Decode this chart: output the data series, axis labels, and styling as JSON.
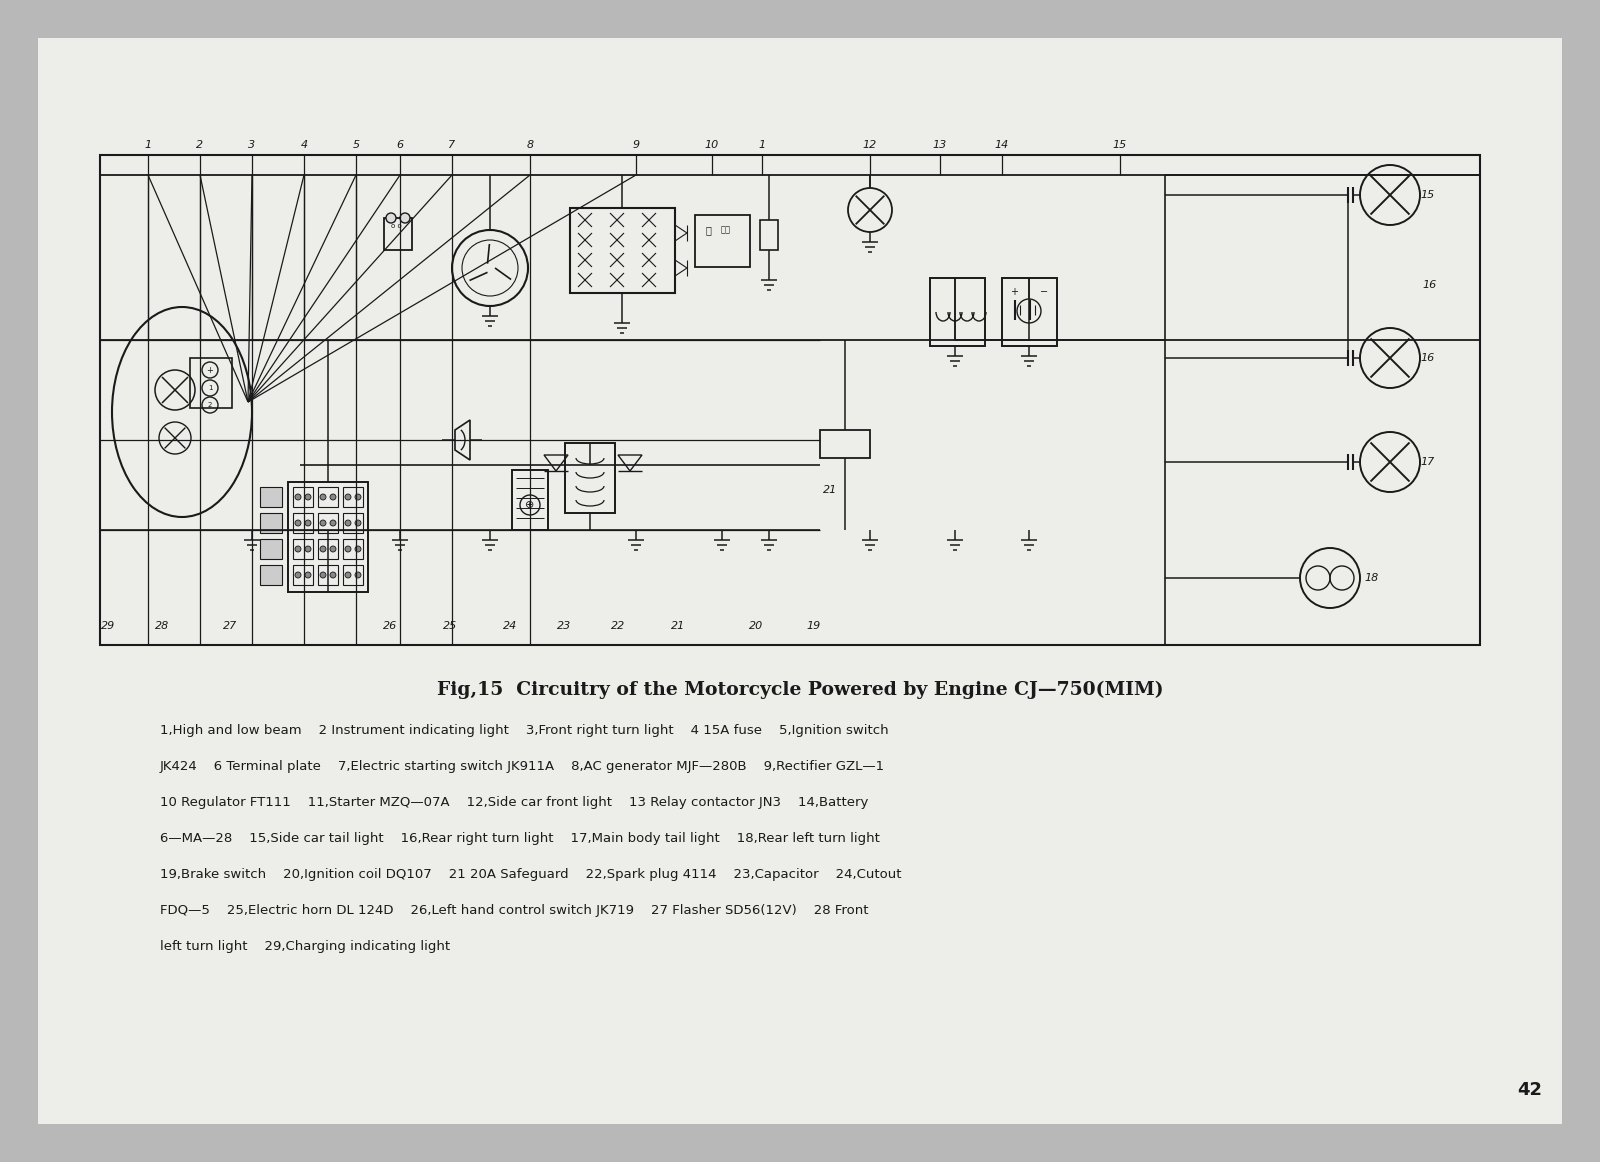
{
  "bg_color": "#b8b8b8",
  "page_bg": "#e8e6e0",
  "line_color": "#1a1a1a",
  "title": "Fig,15  Circuitry of the Motorcycle Powered by Engine CJ—750(MIM)",
  "legend_lines": [
    "1,High and low beam    2 Instrument indicating light    3,Front right turn light    4 15A fuse    5,Ignition switch",
    "JK424    6 Terminal plate    7,Electric starting switch JK911A    8,AC generator MJF—280B    9,Rectifier GZL—1",
    "10 Regulator FT111    11,Starter MZQ—07A    12,Side car front light    13 Relay contactor JN3    14,Battery",
    "6—MA—28    15,Side car tail light    16,Rear right turn light    17,Main body tail light    18,Rear left turn light",
    "19,Brake switch    20,Ignition coil DQ107    21 20A Safeguard    22,Spark plug 4114    23,Capacitor    24,Cutout",
    "FDQ—5    25,Electric horn DL 124D    26,Left hand control switch JK719    27 Flasher SD56(12V)    28 Front",
    "left turn light    29,Charging indicating light"
  ],
  "page_number": "42",
  "top_nums": [
    [
      148,
      145,
      "1"
    ],
    [
      200,
      145,
      "2"
    ],
    [
      252,
      145,
      "3"
    ],
    [
      304,
      145,
      "4"
    ],
    [
      356,
      145,
      "5"
    ],
    [
      400,
      145,
      "6"
    ],
    [
      452,
      145,
      "7"
    ],
    [
      530,
      145,
      "8"
    ],
    [
      636,
      145,
      "9"
    ],
    [
      712,
      145,
      "10"
    ],
    [
      762,
      145,
      "1"
    ],
    [
      870,
      145,
      "12"
    ],
    [
      940,
      145,
      "13"
    ],
    [
      1002,
      145,
      "14"
    ],
    [
      1120,
      145,
      "15"
    ]
  ],
  "bot_nums": [
    [
      108,
      626,
      "29"
    ],
    [
      162,
      626,
      "28"
    ],
    [
      230,
      626,
      "27"
    ],
    [
      390,
      626,
      "26"
    ],
    [
      450,
      626,
      "25"
    ],
    [
      510,
      626,
      "24"
    ],
    [
      564,
      626,
      "23"
    ],
    [
      618,
      626,
      "22"
    ],
    [
      678,
      626,
      "21"
    ],
    [
      756,
      626,
      "20"
    ],
    [
      814,
      626,
      "19"
    ]
  ]
}
